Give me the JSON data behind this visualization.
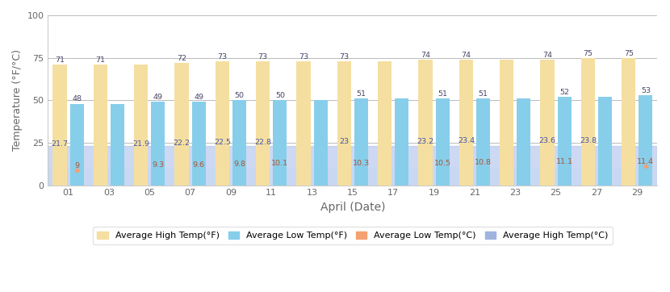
{
  "dates_odd": [
    "01",
    "03",
    "05",
    "07",
    "09",
    "11",
    "13",
    "15",
    "17",
    "19",
    "21",
    "23",
    "25",
    "27",
    "29"
  ],
  "bar_positions": [
    1,
    3,
    5,
    7,
    9,
    11,
    13,
    15,
    17,
    19,
    21,
    23,
    25,
    27,
    29
  ],
  "avg_high_F": [
    71,
    71,
    71,
    72,
    73,
    73,
    73,
    73,
    73,
    74,
    74,
    74,
    74,
    75,
    75
  ],
  "avg_low_F": [
    48,
    48,
    49,
    49,
    50,
    50,
    50,
    51,
    51,
    51,
    51,
    51,
    52,
    52,
    53
  ],
  "avg_low_C": [
    9,
    9,
    9.3,
    9.6,
    9.8,
    10.1,
    10.1,
    10.3,
    10.3,
    10.5,
    10.8,
    10.8,
    11.1,
    11.1,
    11.4
  ],
  "avg_high_C": [
    21.7,
    21.7,
    21.9,
    22.2,
    22.5,
    22.8,
    22.8,
    23,
    23,
    23.2,
    23.4,
    23.4,
    23.6,
    23.8,
    23.8
  ],
  "labels_high_F": [
    71,
    71,
    null,
    72,
    73,
    73,
    73,
    73,
    null,
    74,
    74,
    null,
    74,
    75,
    75
  ],
  "labels_low_F": [
    48,
    null,
    49,
    49,
    50,
    50,
    null,
    51,
    null,
    51,
    51,
    null,
    52,
    null,
    53
  ],
  "labels_low_C": [
    9,
    null,
    9.3,
    9.6,
    9.8,
    10.1,
    null,
    10.3,
    null,
    10.5,
    10.8,
    null,
    11.1,
    null,
    11.4
  ],
  "labels_high_C": [
    21.7,
    null,
    21.9,
    22.2,
    22.5,
    22.8,
    null,
    23,
    null,
    23.2,
    23.4,
    null,
    23.6,
    23.8,
    null
  ],
  "color_high_F": "#F5DFA0",
  "color_low_F": "#87CEEB",
  "color_low_C": "#F4A070",
  "color_high_C": "#A0B4E0",
  "color_band_high_C": "#B8C8EE",
  "color_band_low_C": "#C8D8F4",
  "xlabel": "April (Date)",
  "ylabel": "Temperature (°F/°C)",
  "ylim": [
    0,
    100
  ],
  "yticks": [
    0,
    25,
    50,
    75,
    100
  ],
  "xticks": [
    1,
    3,
    5,
    7,
    9,
    11,
    13,
    15,
    17,
    19,
    21,
    23,
    25,
    27,
    29
  ],
  "legend_labels": [
    "Average High Temp(°F)",
    "Average Low Temp(°F)",
    "Average Low Temp(°C)",
    "Average High Temp(°C)"
  ],
  "bg_color": "#FFFFFF",
  "grid_color": "#BBBBBB",
  "bar_width": 0.8
}
